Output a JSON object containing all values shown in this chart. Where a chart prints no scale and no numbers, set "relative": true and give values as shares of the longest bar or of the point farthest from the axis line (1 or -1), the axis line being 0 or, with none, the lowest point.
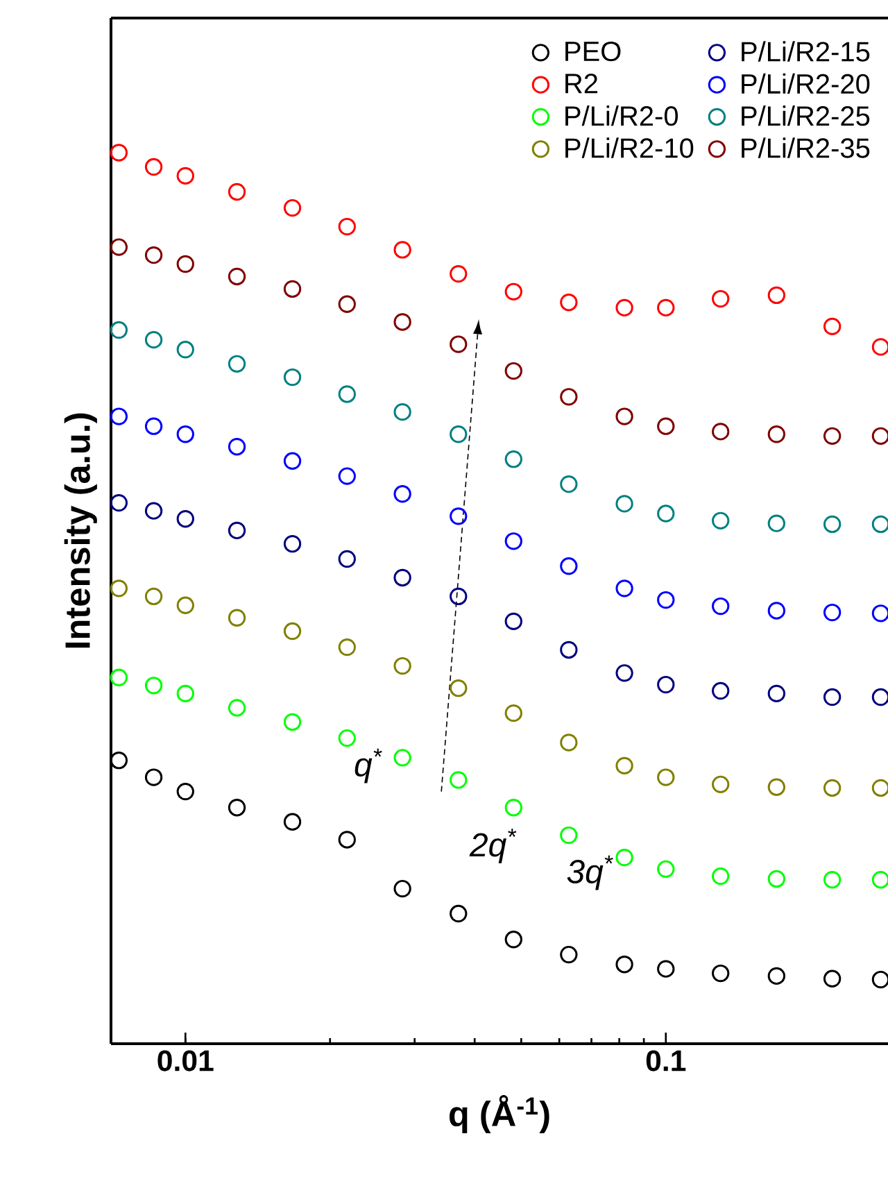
{
  "chart_data": {
    "type": "scatter",
    "relative": true,
    "log": "x",
    "marker": "circle",
    "legend": "top right",
    "grid": false,
    "xlabel": "q (Å$^{-1}$)",
    "ylabel": "Intensity (a.u.)",
    "xlim": [
      0.007,
      0.29
    ],
    "xticks": [
      0.01,
      0.1
    ],
    "x": [
      0.00727,
      0.00859,
      0.01,
      0.0128,
      0.0167,
      0.0217,
      0.0283,
      0.037,
      0.0482,
      0.0628,
      0.082,
      0.1,
      0.13,
      0.17,
      0.222,
      0.28
    ],
    "series": [
      {
        "name": "PEO",
        "color": "#000000",
        "values": [
          0.318,
          0.299,
          0.283,
          0.265,
          0.249,
          0.229,
          0.174,
          0.146,
          0.117,
          0.1,
          0.089,
          0.084,
          0.079,
          0.076,
          0.073,
          0.072
        ]
      },
      {
        "name": "R2",
        "color": "#ff0000",
        "values": [
          1.0,
          0.984,
          0.974,
          0.956,
          0.938,
          0.917,
          0.891,
          0.864,
          0.844,
          0.832,
          0.826,
          0.826,
          0.836,
          0.84,
          0.805,
          0.782
        ]
      },
      {
        "name": "P/Li/R2-0",
        "color": "#00ff00",
        "values": [
          0.411,
          0.402,
          0.393,
          0.377,
          0.361,
          0.343,
          0.321,
          0.296,
          0.265,
          0.234,
          0.209,
          0.196,
          0.188,
          0.185,
          0.184,
          0.184
        ]
      },
      {
        "name": "P/Li/R2-10",
        "color": "#808000",
        "values": [
          0.511,
          0.502,
          0.492,
          0.478,
          0.463,
          0.445,
          0.424,
          0.399,
          0.371,
          0.338,
          0.312,
          0.299,
          0.291,
          0.288,
          0.287,
          0.287
        ]
      },
      {
        "name": "P/Li/R2-15",
        "color": "#000080",
        "values": [
          0.607,
          0.598,
          0.589,
          0.576,
          0.561,
          0.544,
          0.523,
          0.502,
          0.474,
          0.442,
          0.416,
          0.403,
          0.396,
          0.393,
          0.389,
          0.389
        ]
      },
      {
        "name": "P/Li/R2-20",
        "color": "#0000ff",
        "values": [
          0.704,
          0.693,
          0.684,
          0.67,
          0.654,
          0.637,
          0.617,
          0.592,
          0.564,
          0.536,
          0.511,
          0.498,
          0.491,
          0.486,
          0.484,
          0.483
        ]
      },
      {
        "name": "P/Li/R2-25",
        "color": "#008080",
        "values": [
          0.801,
          0.79,
          0.779,
          0.763,
          0.748,
          0.729,
          0.709,
          0.684,
          0.656,
          0.628,
          0.606,
          0.595,
          0.587,
          0.584,
          0.583,
          0.583
        ]
      },
      {
        "name": "P/Li/R2-35",
        "color": "#800000",
        "values": [
          0.894,
          0.885,
          0.875,
          0.861,
          0.847,
          0.83,
          0.81,
          0.785,
          0.755,
          0.726,
          0.704,
          0.693,
          0.687,
          0.684,
          0.682,
          0.682
        ]
      }
    ],
    "annotations": [
      "q$^{*}$",
      "2q$^{*}$",
      "3q$^{*}$"
    ]
  }
}
